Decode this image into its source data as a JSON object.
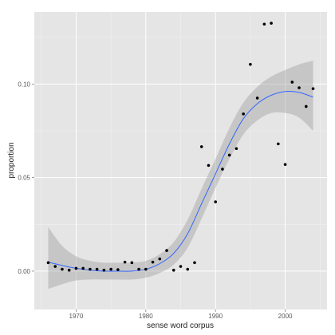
{
  "chart_data": {
    "type": "scatter",
    "title": "",
    "xlabel": "sense word corpus",
    "ylabel": "proportion",
    "xlim": [
      1964,
      2006
    ],
    "ylim": [
      -0.0205,
      0.1385
    ],
    "x_ticks": [
      1970,
      1980,
      1990,
      2000
    ],
    "x_tick_labels": [
      "1970",
      "1980",
      "1990",
      "2000"
    ],
    "y_ticks": [
      0.0,
      0.05,
      0.1
    ],
    "y_tick_labels": [
      "0.00",
      "0.05",
      "0.10"
    ],
    "grid": true,
    "legend": "none",
    "colors": {
      "panel_background": "#e5e5e5",
      "grid": "#ffffff",
      "points": "#000000",
      "smooth_line": "#3366ff",
      "confidence_band": "#999999"
    },
    "points": {
      "x": [
        1966,
        1967,
        1968,
        1969,
        1970,
        1971,
        1972,
        1973,
        1974,
        1975,
        1976,
        1977,
        1978,
        1979,
        1980,
        1981,
        1982,
        1983,
        1984,
        1985,
        1986,
        1987,
        1988,
        1989,
        1990,
        1991,
        1992,
        1993,
        1994,
        1995,
        1996,
        1997,
        1998,
        1999,
        2000,
        2001,
        2002,
        2003,
        2004
      ],
      "y": [
        0.0045,
        0.0025,
        0.001,
        0.0005,
        0.0015,
        0.0015,
        0.001,
        0.001,
        0.0005,
        0.001,
        0.0008,
        0.0048,
        0.0045,
        0.001,
        0.001,
        0.0048,
        0.0065,
        0.011,
        0.0005,
        0.0025,
        0.001,
        0.0045,
        0.0665,
        0.0565,
        0.037,
        0.0545,
        0.062,
        0.0655,
        0.084,
        0.1105,
        0.0925,
        0.132,
        0.1325,
        0.068,
        0.057,
        0.101,
        0.098,
        0.088,
        0.0975
      ]
    },
    "smooth": {
      "method": "loess",
      "x": [
        1966,
        1968,
        1970,
        1972,
        1974,
        1976,
        1978,
        1980,
        1982,
        1984,
        1986,
        1988,
        1990,
        1992,
        1994,
        1996,
        1998,
        2000,
        2002,
        2004
      ],
      "y": [
        0.0048,
        0.003,
        0.0015,
        0.0005,
        0.0,
        0.0,
        0.0,
        0.001,
        0.004,
        0.0095,
        0.02,
        0.036,
        0.052,
        0.068,
        0.0815,
        0.0895,
        0.094,
        0.096,
        0.0955,
        0.093
      ],
      "ymin": [
        -0.0095,
        -0.007,
        -0.005,
        -0.0045,
        -0.0045,
        -0.0045,
        -0.0045,
        -0.0035,
        -0.001,
        0.0035,
        0.0125,
        0.028,
        0.0445,
        0.06,
        0.073,
        0.0805,
        0.0845,
        0.0845,
        0.082,
        0.075
      ],
      "ymax": [
        0.0235,
        0.0135,
        0.008,
        0.0055,
        0.0045,
        0.0045,
        0.0045,
        0.0055,
        0.009,
        0.0155,
        0.0275,
        0.044,
        0.06,
        0.0765,
        0.09,
        0.0985,
        0.104,
        0.1075,
        0.1105,
        0.1125
      ]
    }
  }
}
